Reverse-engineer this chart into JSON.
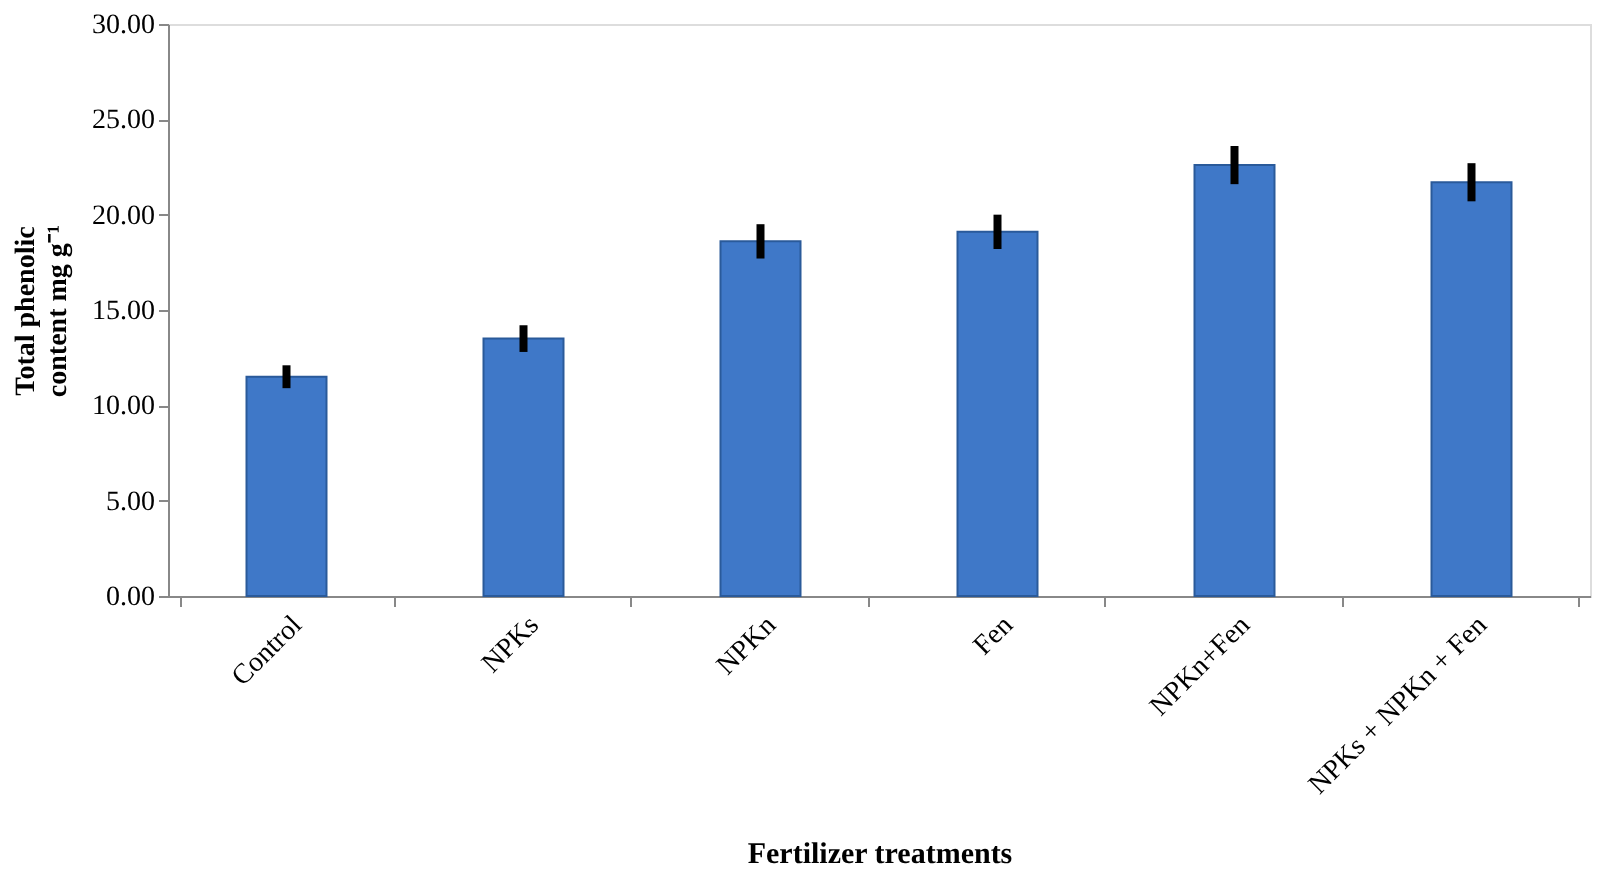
{
  "chart_data": {
    "type": "bar",
    "xlabel": "Fertilizer treatments",
    "ylabel": "Total phenolic content mg g⁻¹",
    "categories": [
      "Control",
      "NPKs",
      "NPKn",
      "Fen",
      "NPKn+Fen",
      "NPKs + NPKn + Fen"
    ],
    "values": [
      11.5,
      13.5,
      18.6,
      19.1,
      22.6,
      21.7
    ],
    "errors": [
      0.6,
      0.7,
      0.9,
      0.9,
      1.0,
      1.0
    ],
    "color": "#3f78c8",
    "ylim": [
      0,
      30
    ],
    "yticks": [
      {
        "value": 0,
        "label": "0.00"
      },
      {
        "value": 5,
        "label": "5.00"
      },
      {
        "value": 10,
        "label": "10.00"
      },
      {
        "value": 15,
        "label": "15.00"
      },
      {
        "value": 20,
        "label": "20.00"
      },
      {
        "value": 25,
        "label": "25.00"
      },
      {
        "value": 30,
        "label": "30.00"
      }
    ],
    "grid": false
  }
}
